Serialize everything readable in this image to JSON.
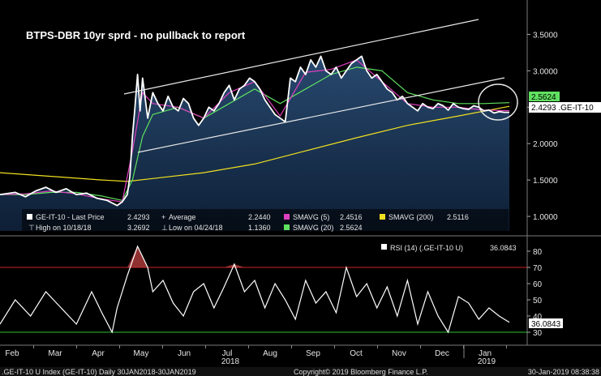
{
  "chart_data": [
    {
      "type": "line",
      "title": "BTPS-DBR 10yr sprd - no pullback to report",
      "y_ticks": [
        1.0,
        1.5,
        2.0,
        2.5,
        3.0,
        3.5
      ],
      "y_tick_labels": [
        "1.0000",
        "1.5000",
        "2.0000",
        "2.5000",
        "3.0000",
        "3.5000"
      ],
      "ylim": [
        0.8,
        3.75
      ],
      "price_tag": "2.5624",
      "last_tag": "2.4293 .GE-IT-10",
      "legend": [
        {
          "label": "GE-IT-10 - Last Price",
          "value": "2.4293",
          "color": "#ffffff"
        },
        {
          "label": "Average",
          "value": "2.2440",
          "color": "#bbbbbb"
        },
        {
          "label": "SMAVG (5)",
          "value": "2.4516",
          "color": "#e040c0"
        },
        {
          "label": "SMAVG (200)",
          "value": "2.5116",
          "color": "#f0e020"
        },
        {
          "label": "High on 10/18/18",
          "value": "3.2692",
          "color": "#bbbbbb"
        },
        {
          "label": "Low on 04/24/18",
          "value": "1.1360",
          "color": "#bbbbbb"
        },
        {
          "label": "SMAVG (20)",
          "value": "2.5624",
          "color": "#60e060"
        }
      ],
      "series": [
        {
          "name": "GE-IT-10 - Last Price",
          "x": [
            0,
            0.03,
            0.05,
            0.07,
            0.09,
            0.11,
            0.13,
            0.15,
            0.17,
            0.19,
            0.21,
            0.23,
            0.24,
            0.25,
            0.255,
            0.26,
            0.265,
            0.27,
            0.275,
            0.28,
            0.29,
            0.3,
            0.31,
            0.32,
            0.33,
            0.34,
            0.35,
            0.36,
            0.37,
            0.38,
            0.39,
            0.4,
            0.41,
            0.42,
            0.43,
            0.44,
            0.45,
            0.46,
            0.47,
            0.48,
            0.49,
            0.5,
            0.51,
            0.52,
            0.53,
            0.54,
            0.55,
            0.56,
            0.57,
            0.58,
            0.59,
            0.6,
            0.61,
            0.62,
            0.63,
            0.64,
            0.65,
            0.66,
            0.67,
            0.68,
            0.69,
            0.7,
            0.71,
            0.72,
            0.73,
            0.74,
            0.75,
            0.76,
            0.77,
            0.78,
            0.79,
            0.8,
            0.81,
            0.82,
            0.83,
            0.84,
            0.85,
            0.86,
            0.87,
            0.88,
            0.89,
            0.9,
            0.91,
            0.92,
            0.93,
            0.94,
            0.95,
            0.96,
            0.97,
            0.98,
            0.99,
            1.0
          ],
          "y": [
            1.3,
            1.33,
            1.27,
            1.35,
            1.4,
            1.33,
            1.38,
            1.3,
            1.32,
            1.25,
            1.22,
            1.15,
            1.2,
            1.3,
            1.55,
            2.1,
            2.5,
            2.95,
            2.45,
            2.9,
            2.35,
            2.7,
            2.55,
            2.45,
            2.65,
            2.5,
            2.45,
            2.62,
            2.55,
            2.35,
            2.25,
            2.35,
            2.5,
            2.45,
            2.55,
            2.7,
            2.8,
            2.6,
            2.75,
            2.8,
            2.9,
            2.85,
            2.75,
            2.6,
            2.5,
            2.4,
            2.35,
            2.3,
            2.9,
            2.85,
            3.05,
            2.95,
            3.15,
            3.05,
            3.2,
            3.0,
            2.95,
            3.05,
            2.9,
            3.0,
            3.1,
            3.15,
            3.2,
            3.0,
            2.9,
            2.95,
            2.85,
            2.75,
            2.7,
            2.6,
            2.65,
            2.55,
            2.5,
            2.45,
            2.55,
            2.5,
            2.48,
            2.55,
            2.52,
            2.46,
            2.55,
            2.5,
            2.48,
            2.47,
            2.52,
            2.5,
            2.45,
            2.46,
            2.42,
            2.44,
            2.43,
            2.4293
          ]
        },
        {
          "name": "SMAVG (5)",
          "x": [
            0,
            0.05,
            0.1,
            0.15,
            0.2,
            0.24,
            0.26,
            0.28,
            0.3,
            0.35,
            0.4,
            0.45,
            0.5,
            0.55,
            0.6,
            0.65,
            0.7,
            0.75,
            0.8,
            0.85,
            0.9,
            0.95,
            1.0
          ],
          "y": [
            1.3,
            1.31,
            1.35,
            1.31,
            1.24,
            1.2,
            1.9,
            2.7,
            2.55,
            2.5,
            2.35,
            2.7,
            2.85,
            2.38,
            2.98,
            3.02,
            3.15,
            2.85,
            2.55,
            2.5,
            2.5,
            2.46,
            2.4516
          ]
        },
        {
          "name": "SMAVG (20)",
          "x": [
            0,
            0.05,
            0.1,
            0.15,
            0.2,
            0.24,
            0.26,
            0.28,
            0.3,
            0.35,
            0.4,
            0.45,
            0.5,
            0.55,
            0.6,
            0.65,
            0.7,
            0.75,
            0.8,
            0.85,
            0.9,
            0.95,
            1.0
          ],
          "y": [
            1.3,
            1.3,
            1.33,
            1.33,
            1.28,
            1.22,
            1.5,
            2.1,
            2.4,
            2.5,
            2.35,
            2.55,
            2.75,
            2.55,
            2.75,
            2.95,
            3.05,
            3.0,
            2.7,
            2.6,
            2.55,
            2.55,
            2.5624
          ]
        },
        {
          "name": "SMAVG (200)",
          "x": [
            0,
            0.1,
            0.2,
            0.25,
            0.3,
            0.4,
            0.5,
            0.6,
            0.7,
            0.8,
            0.9,
            1.0
          ],
          "y": [
            1.6,
            1.55,
            1.5,
            1.48,
            1.52,
            1.6,
            1.72,
            1.9,
            2.08,
            2.25,
            2.38,
            2.5116
          ]
        }
      ]
    },
    {
      "type": "line",
      "title": "RSI (14) (.GE-IT-10 U)",
      "value": "36.0843",
      "y_ticks": [
        30,
        40,
        50,
        60,
        70,
        80
      ],
      "ylim": [
        25,
        85
      ],
      "reference_lines": [
        70,
        30
      ],
      "series": [
        {
          "name": "RSI (14) (.GE-IT-10 U)",
          "x": [
            0,
            0.03,
            0.06,
            0.09,
            0.12,
            0.15,
            0.18,
            0.2,
            0.22,
            0.23,
            0.25,
            0.27,
            0.29,
            0.3,
            0.32,
            0.34,
            0.36,
            0.38,
            0.4,
            0.42,
            0.44,
            0.46,
            0.48,
            0.5,
            0.52,
            0.54,
            0.56,
            0.58,
            0.6,
            0.62,
            0.64,
            0.66,
            0.68,
            0.7,
            0.72,
            0.74,
            0.76,
            0.78,
            0.8,
            0.82,
            0.84,
            0.86,
            0.88,
            0.9,
            0.92,
            0.94,
            0.96,
            0.98,
            1.0
          ],
          "y": [
            35,
            50,
            40,
            55,
            45,
            35,
            55,
            42,
            30,
            45,
            65,
            83,
            70,
            55,
            62,
            48,
            40,
            55,
            60,
            45,
            58,
            72,
            55,
            62,
            45,
            60,
            50,
            38,
            62,
            48,
            55,
            42,
            70,
            52,
            60,
            45,
            58,
            40,
            62,
            35,
            55,
            40,
            30,
            52,
            48,
            38,
            45,
            40,
            36.08
          ]
        }
      ]
    }
  ],
  "x_axis": {
    "months": [
      "Feb",
      "Mar",
      "Apr",
      "May",
      "Jun",
      "Jul",
      "Aug",
      "Sep",
      "Oct",
      "Nov",
      "Dec",
      "Jan"
    ],
    "year_labels": [
      "2018",
      "2019"
    ]
  },
  "footer": {
    "index": ".GE-IT-10 U Index (GE-IT-10)  Daily 30JAN2018-30JAN2019",
    "copyright": "Copyright© 2019 Bloomberg Finance L.P.",
    "timestamp": "30-Jan-2019 08:38:38"
  },
  "colors": {
    "price": "#ffffff",
    "sma5": "#e040c0",
    "sma20": "#60e060",
    "sma200": "#f0e020",
    "fill": "#1e3a5c",
    "rsi": "#ffffff",
    "ref_high": "#d02020",
    "ref_low": "#30c030"
  }
}
